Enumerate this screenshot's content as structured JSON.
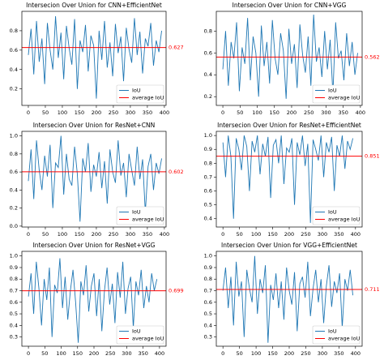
{
  "chart_data": [
    {
      "type": "line",
      "title": "Intersecion Over Union for CNN+EfficientNet",
      "x": [
        0,
        8,
        16,
        24,
        32,
        40,
        48,
        56,
        64,
        72,
        80,
        88,
        96,
        104,
        112,
        120,
        128,
        136,
        144,
        152,
        160,
        168,
        176,
        184,
        192,
        200,
        208,
        216,
        224,
        232,
        240,
        248,
        256,
        264,
        272,
        280,
        288,
        296,
        304,
        312,
        320,
        328,
        336,
        344,
        352,
        360,
        368,
        376,
        384,
        392
      ],
      "series": [
        {
          "name": "IoU",
          "color": "#1f77b4",
          "values": [
            0.55,
            0.82,
            0.35,
            0.9,
            0.48,
            0.72,
            0.25,
            0.88,
            0.6,
            0.4,
            0.95,
            0.52,
            0.78,
            0.3,
            0.85,
            0.62,
            0.45,
            0.92,
            0.2,
            0.7,
            0.58,
            0.86,
            0.38,
            0.75,
            0.65,
            0.1,
            0.8,
            0.5,
            0.9,
            0.42,
            0.68,
            0.33,
            0.87,
            0.57,
            0.74,
            0.28,
            0.83,
            0.61,
            0.47,
            0.93,
            0.55,
            0.79,
            0.36,
            0.72,
            0.64,
            0.88,
            0.44,
            0.7,
            0.58,
            0.8
          ]
        }
      ],
      "average": {
        "name": "average IoU",
        "color": "#ff0000",
        "value": 0.627
      },
      "xlim": [
        -19,
        405
      ],
      "xticks": [
        0,
        50,
        100,
        150,
        200,
        250,
        300,
        350,
        400
      ],
      "ylim": [
        0.03,
        1.0
      ],
      "yticks": [
        0.2,
        0.4,
        0.6,
        0.8
      ],
      "legend": "lower right"
    },
    {
      "type": "line",
      "title": "Intersecion Over Union for CNN+VGG",
      "x": [
        0,
        8,
        16,
        24,
        32,
        40,
        48,
        56,
        64,
        72,
        80,
        88,
        96,
        104,
        112,
        120,
        128,
        136,
        144,
        152,
        160,
        168,
        176,
        184,
        192,
        200,
        208,
        216,
        224,
        232,
        240,
        248,
        256,
        264,
        272,
        280,
        288,
        296,
        304,
        312,
        320,
        328,
        336,
        344,
        352,
        360,
        368,
        376,
        384,
        392
      ],
      "series": [
        {
          "name": "IoU",
          "color": "#1f77b4",
          "values": [
            0.45,
            0.8,
            0.3,
            0.7,
            0.55,
            0.88,
            0.25,
            0.65,
            0.5,
            0.92,
            0.35,
            0.75,
            0.6,
            0.2,
            0.85,
            0.48,
            0.7,
            0.32,
            0.9,
            0.55,
            0.4,
            0.78,
            0.62,
            0.18,
            0.82,
            0.5,
            0.68,
            0.28,
            0.86,
            0.58,
            0.42,
            0.75,
            0.3,
            0.95,
            0.52,
            0.65,
            0.38,
            0.8,
            0.45,
            0.72,
            0.22,
            0.88,
            0.55,
            0.62,
            0.35,
            0.78,
            0.48,
            0.7,
            0.4,
            0.6
          ]
        }
      ],
      "average": {
        "name": "average IoU",
        "color": "#ff0000",
        "value": 0.562
      },
      "xlim": [
        -19,
        405
      ],
      "xticks": [
        0,
        50,
        100,
        150,
        200,
        250,
        300,
        350,
        400
      ],
      "ylim": [
        0.12,
        0.98
      ],
      "yticks": [
        0.2,
        0.4,
        0.6,
        0.8
      ],
      "legend": "lower right"
    },
    {
      "type": "line",
      "title": "Intersecion Over Union for ResNet+CNN",
      "x": [
        0,
        8,
        16,
        24,
        32,
        40,
        48,
        56,
        64,
        72,
        80,
        88,
        96,
        104,
        112,
        120,
        128,
        136,
        144,
        152,
        160,
        168,
        176,
        184,
        192,
        200,
        208,
        216,
        224,
        232,
        240,
        248,
        256,
        264,
        272,
        280,
        288,
        296,
        304,
        312,
        320,
        328,
        336,
        344,
        352,
        360,
        368,
        376,
        384,
        392
      ],
      "series": [
        {
          "name": "IoU",
          "color": "#1f77b4",
          "values": [
            0.5,
            0.85,
            0.3,
            0.95,
            0.62,
            0.4,
            0.78,
            0.55,
            0.9,
            0.2,
            0.7,
            0.65,
            1.0,
            0.35,
            0.8,
            0.52,
            0.45,
            0.88,
            0.58,
            0.05,
            0.75,
            0.6,
            0.92,
            0.38,
            0.68,
            0.55,
            0.82,
            0.42,
            0.72,
            0.25,
            0.85,
            0.6,
            0.48,
            0.95,
            0.56,
            0.7,
            0.32,
            0.8,
            0.62,
            0.45,
            0.88,
            0.52,
            0.74,
            0.15,
            0.66,
            0.8,
            0.4,
            0.7,
            0.58,
            0.75
          ]
        }
      ],
      "average": {
        "name": "average IoU",
        "color": "#ff0000",
        "value": 0.602
      },
      "xlim": [
        -19,
        405
      ],
      "xticks": [
        0,
        50,
        100,
        150,
        200,
        250,
        300,
        350,
        400
      ],
      "ylim": [
        -0.01,
        1.05
      ],
      "yticks": [
        {
          "value": 0,
          "label": "0.0"
        },
        0.2,
        0.4,
        0.6,
        0.8,
        {
          "value": 1,
          "label": "1.0"
        }
      ],
      "legend": "lower right"
    },
    {
      "type": "line",
      "title": "Intersecion Over Union for ResNet+EfficientNet",
      "x": [
        0,
        8,
        16,
        24,
        32,
        40,
        48,
        56,
        64,
        72,
        80,
        88,
        96,
        104,
        112,
        120,
        128,
        136,
        144,
        152,
        160,
        168,
        176,
        184,
        192,
        200,
        208,
        216,
        224,
        232,
        240,
        248,
        256,
        264,
        272,
        280,
        288,
        296,
        304,
        312,
        320,
        328,
        336,
        344,
        352,
        360,
        368,
        376,
        384,
        392
      ],
      "series": [
        {
          "name": "IoU",
          "color": "#1f77b4",
          "values": [
            0.95,
            0.7,
            1.0,
            0.85,
            0.4,
            0.98,
            0.9,
            0.75,
            1.0,
            0.92,
            0.6,
            0.96,
            0.88,
            1.0,
            0.72,
            0.94,
            0.85,
            0.99,
            0.55,
            0.93,
            0.97,
            0.8,
            1.0,
            0.65,
            0.91,
            0.88,
            0.98,
            0.5,
            0.95,
            0.86,
            1.0,
            0.78,
            0.94,
            0.37,
            0.97,
            0.9,
            0.82,
            1.0,
            0.7,
            0.95,
            0.88,
            0.99,
            0.6,
            0.93,
            0.85,
            1.0,
            0.76,
            0.96,
            0.9,
            0.98
          ]
        }
      ],
      "average": {
        "name": "average IoU",
        "color": "#ff0000",
        "value": 0.851
      },
      "xlim": [
        -20,
        420
      ],
      "xticks": [
        0,
        50,
        100,
        150,
        200,
        250,
        300,
        350,
        400
      ],
      "ylim": [
        0.34,
        1.03
      ],
      "yticks": [
        0.4,
        0.5,
        0.6,
        0.7,
        0.8,
        0.9,
        {
          "value": 1,
          "label": "1.0"
        }
      ],
      "legend": "lower right"
    },
    {
      "type": "line",
      "title": "Intersecion Over Union for ResNet+VGG",
      "x": [
        0,
        8,
        16,
        24,
        32,
        40,
        48,
        56,
        64,
        72,
        80,
        88,
        96,
        104,
        112,
        120,
        128,
        136,
        144,
        152,
        160,
        168,
        176,
        184,
        192,
        200,
        208,
        216,
        224,
        232,
        240,
        248,
        256,
        264,
        272,
        280,
        288,
        296,
        304,
        312,
        320,
        328,
        336,
        344,
        352,
        360,
        368,
        376,
        384,
        392
      ],
      "series": [
        {
          "name": "IoU",
          "color": "#1f77b4",
          "values": [
            0.65,
            0.85,
            0.5,
            0.95,
            0.72,
            0.4,
            0.8,
            0.62,
            0.9,
            0.3,
            0.75,
            0.68,
            0.98,
            0.55,
            0.82,
            0.45,
            0.7,
            0.88,
            0.6,
            0.25,
            0.78,
            0.66,
            0.92,
            0.52,
            0.74,
            0.85,
            0.48,
            0.8,
            0.35,
            0.7,
            0.9,
            0.58,
            0.76,
            0.42,
            0.86,
            0.64,
            0.95,
            0.5,
            0.72,
            0.82,
            0.38,
            0.78,
            0.66,
            0.88,
            0.55,
            0.74,
            0.6,
            0.85,
            0.7,
            0.8
          ]
        }
      ],
      "average": {
        "name": "average IoU",
        "color": "#ff0000",
        "value": 0.699
      },
      "xlim": [
        -20,
        420
      ],
      "xticks": [
        0,
        50,
        100,
        150,
        200,
        250,
        300,
        350,
        400
      ],
      "ylim": [
        0.22,
        1.04
      ],
      "yticks": [
        0.3,
        0.4,
        0.5,
        0.6,
        0.7,
        0.8,
        0.9,
        {
          "value": 1,
          "label": "1.0"
        }
      ],
      "legend": "lower right"
    },
    {
      "type": "line",
      "title": "Intersecion Over Union for VGG+EfficientNet",
      "x": [
        0,
        8,
        16,
        24,
        32,
        40,
        48,
        56,
        64,
        72,
        80,
        88,
        96,
        104,
        112,
        120,
        128,
        136,
        144,
        152,
        160,
        168,
        176,
        184,
        192,
        200,
        208,
        216,
        224,
        232,
        240,
        248,
        256,
        264,
        272,
        280,
        288,
        296,
        304,
        312,
        320,
        328,
        336,
        344,
        352,
        360,
        368,
        376,
        384,
        392
      ],
      "series": [
        {
          "name": "IoU",
          "color": "#1f77b4",
          "values": [
            0.7,
            0.9,
            0.55,
            0.82,
            0.4,
            0.95,
            0.65,
            0.78,
            0.3,
            0.88,
            0.72,
            0.6,
            1.0,
            0.5,
            0.8,
            0.68,
            0.92,
            0.25,
            0.75,
            0.62,
            0.85,
            0.55,
            0.78,
            0.45,
            0.9,
            0.7,
            0.58,
            0.86,
            0.35,
            0.76,
            0.82,
            0.64,
            0.95,
            0.48,
            0.72,
            0.88,
            0.6,
            0.8,
            0.42,
            0.74,
            0.92,
            0.56,
            0.78,
            0.68,
            0.85,
            0.38,
            0.8,
            0.7,
            0.88,
            0.66
          ]
        }
      ],
      "average": {
        "name": "average IoU",
        "color": "#ff0000",
        "value": 0.711
      },
      "xlim": [
        -20,
        420
      ],
      "xticks": [
        0,
        50,
        100,
        150,
        200,
        250,
        300,
        350,
        400
      ],
      "ylim": [
        0.22,
        1.04
      ],
      "yticks": [
        0.3,
        0.4,
        0.5,
        0.6,
        0.7,
        0.8,
        0.9,
        {
          "value": 1,
          "label": "1.0"
        }
      ],
      "legend": "lower right"
    }
  ]
}
